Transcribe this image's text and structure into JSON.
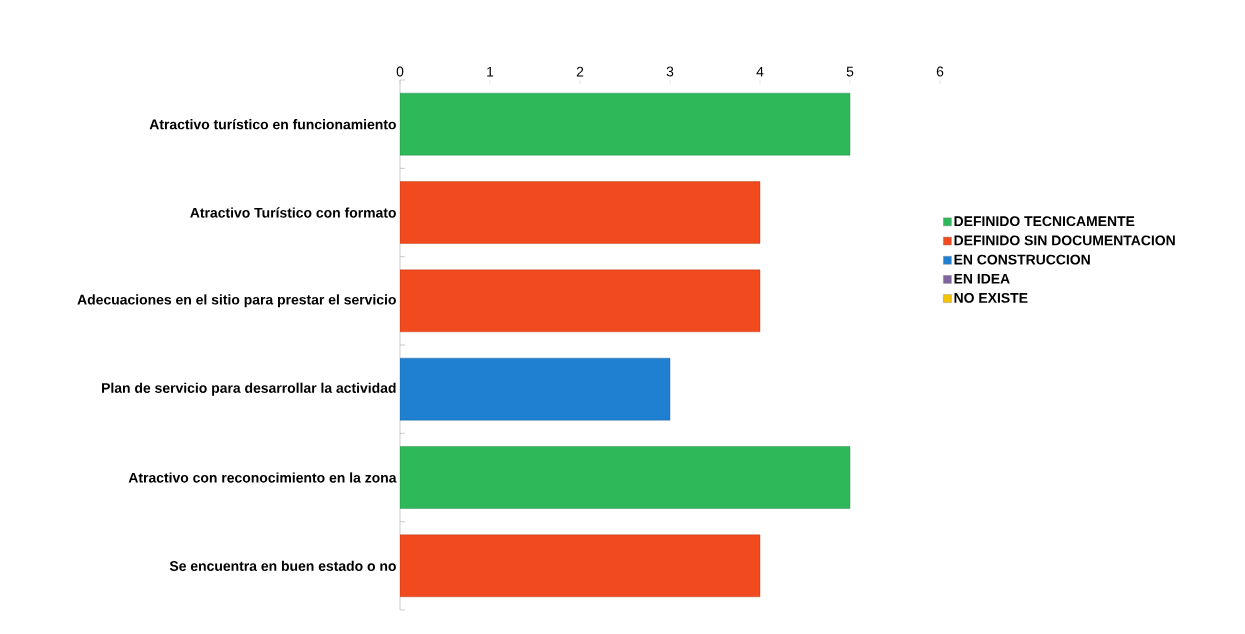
{
  "chart_data": {
    "type": "bar",
    "orientation": "horizontal",
    "categories": [
      "Atractivo turístico en funcionamiento",
      "Atractivo Turístico con formato",
      "Adecuaciones en el sitio para prestar el servicio",
      "Plan de servicio para desarrollar la actividad",
      "Atractivo con reconocimiento en la zona",
      "Se encuentra en buen estado o no"
    ],
    "series": [
      {
        "name": "DEFINIDO TECNICAMENTE",
        "color": "#2fb85a",
        "values": [
          5,
          null,
          null,
          null,
          5,
          null
        ]
      },
      {
        "name": "DEFINIDO SIN DOCUMENTACION",
        "color": "#f04a1e",
        "values": [
          null,
          4,
          4,
          null,
          null,
          4
        ]
      },
      {
        "name": "EN CONSTRUCCION",
        "color": "#1f7fd0",
        "values": [
          null,
          null,
          null,
          3,
          null,
          null
        ]
      },
      {
        "name": "EN IDEA",
        "color": "#8064a2",
        "values": [
          null,
          null,
          null,
          null,
          null,
          null
        ]
      },
      {
        "name": "NO EXISTE",
        "color": "#f5c400",
        "values": [
          null,
          null,
          null,
          null,
          null,
          null
        ]
      }
    ],
    "xlim": [
      0,
      6
    ],
    "xticks": [
      0,
      1,
      2,
      3,
      4,
      5,
      6
    ],
    "grid": false,
    "legend": "right"
  }
}
